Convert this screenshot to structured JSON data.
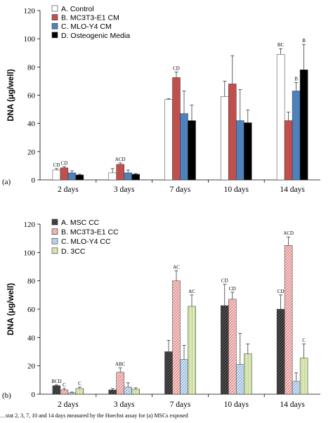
{
  "caption": "…stat 2, 3, 7, 10 and 14 days measured by the Hoechst assay for (a) MSCs exposed",
  "colors": {
    "pattern_msc": "#5a5a5a",
    "pattern_mc3t3": "#e9a3a3",
    "pattern_mlo": "#a9c9e6",
    "pattern_3cc": "#cfe3a0"
  },
  "chart_data": [
    {
      "panel": "(a)",
      "type": "bar",
      "ylabel": "DNA (μg/well)",
      "ylim": [
        0,
        120
      ],
      "yticks": [
        0,
        20,
        40,
        60,
        80,
        100,
        120
      ],
      "categories": [
        "2 days",
        "3 days",
        "7 days",
        "10 days",
        "14 days"
      ],
      "legend_position": "top-left",
      "series": [
        {
          "name": "A. Control",
          "color": "#ffffff",
          "values": [
            7,
            5,
            57,
            59,
            89
          ],
          "errors": [
            1,
            3,
            0.5,
            11,
            4
          ],
          "labels": [
            "CD",
            "",
            "",
            "",
            "BC"
          ]
        },
        {
          "name": "B. MC3T3-E1 CM",
          "color": "#c0504d",
          "values": [
            8.5,
            11,
            72.5,
            68,
            42
          ],
          "errors": [
            0.8,
            1,
            4,
            20,
            6
          ],
          "labels": [
            "CD",
            "ACD",
            "CD",
            "",
            ""
          ]
        },
        {
          "name": "C. MLO-Y4 CM",
          "color": "#4f81bd",
          "values": [
            5,
            5,
            47,
            42,
            63
          ],
          "errors": [
            1.5,
            2,
            16,
            22,
            6
          ],
          "labels": [
            "",
            "",
            "",
            "",
            "B"
          ]
        },
        {
          "name": "D. Osteogenic Media",
          "color": "#000000",
          "values": [
            3.5,
            4,
            42,
            40.5,
            78
          ],
          "errors": [
            0.5,
            0.5,
            11,
            9,
            18
          ],
          "labels": [
            "",
            "",
            "",
            "",
            "B"
          ]
        }
      ]
    },
    {
      "panel": "(b)",
      "type": "bar",
      "ylabel": "DNA (μg/well)",
      "ylim": [
        0,
        120
      ],
      "yticks": [
        0,
        20,
        40,
        60,
        80,
        100,
        120
      ],
      "categories": [
        "2 days",
        "3 days",
        "7 days",
        "10 days",
        "14 days"
      ],
      "legend_position": "top-left",
      "series": [
        {
          "name": "A. MSC CC",
          "fill": "msc",
          "values": [
            6,
            3,
            30,
            62.5,
            60
          ],
          "errors": [
            0.5,
            1,
            8,
            15,
            10
          ],
          "labels": [
            "BCD",
            "",
            "",
            "CD",
            "CD"
          ]
        },
        {
          "name": "B. MC3T3-E1 CC",
          "fill": "mc3t3",
          "values": [
            3,
            15.5,
            80,
            67,
            105
          ],
          "errors": [
            1,
            3,
            7,
            5,
            6
          ],
          "labels": [
            "C",
            "ABC",
            "AC",
            "CD",
            "ACD"
          ]
        },
        {
          "name": "C. MLO-Y4 CC",
          "fill": "mlo",
          "values": [
            1,
            5,
            24.5,
            21,
            9
          ],
          "errors": [
            0.5,
            3,
            10,
            22,
            6
          ],
          "labels": [
            "",
            "",
            "",
            "",
            ""
          ]
        },
        {
          "name": "D. 3CC",
          "fill": "cc3",
          "values": [
            4,
            3.5,
            62,
            28.5,
            25.5
          ],
          "errors": [
            1,
            1,
            8,
            7,
            10
          ],
          "labels": [
            "C",
            "",
            "AC",
            "",
            "C"
          ]
        }
      ]
    }
  ]
}
